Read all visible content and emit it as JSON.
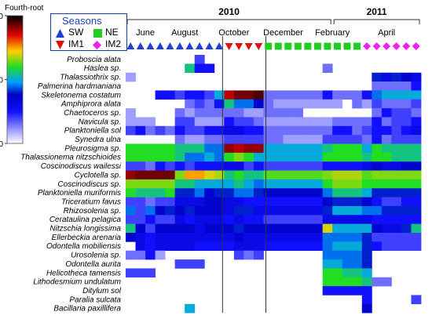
{
  "colorbar": {
    "title": "Fourth-root",
    "ticks": [
      "40",
      "20",
      "0"
    ]
  },
  "season_legend": {
    "title": "Seasons",
    "items": [
      {
        "code": "SW",
        "marker": "triangle-up",
        "color": "#1f3fd9"
      },
      {
        "code": "NE",
        "marker": "square",
        "color": "#22cc22"
      },
      {
        "code": "IM1",
        "marker": "triangle-down",
        "color": "#dd1111"
      },
      {
        "code": "IM2",
        "marker": "diamond",
        "color": "#ee22ee"
      }
    ]
  },
  "chart_data": {
    "type": "heatmap",
    "years": [
      {
        "label": "2010",
        "col_start": 0,
        "col_end": 20
      },
      {
        "label": "2011",
        "col_start": 21,
        "col_end": 29
      }
    ],
    "months": [
      "June",
      "August",
      "October",
      "December",
      "February",
      "April"
    ],
    "sample_seasons": [
      "SW",
      "SW",
      "SW",
      "SW",
      "SW",
      "SW",
      "SW",
      "SW",
      "SW",
      "SW",
      "IM1",
      "IM1",
      "IM1",
      "IM1",
      "NE",
      "NE",
      "NE",
      "NE",
      "NE",
      "NE",
      "NE",
      "NE",
      "NE",
      "NE",
      "IM2",
      "IM2",
      "IM2",
      "IM2",
      "IM2",
      "IM2"
    ],
    "species": [
      "Proboscia alata",
      "Haslea sp.",
      "Thalassiothrix sp.",
      "Palmerina hardmaniana",
      "Skeletonema costatum",
      "Amphiprora alata",
      "Chaetoceros sp.",
      "Navicula sp.",
      "Planktoniella sol",
      "Synedra ulna",
      "Pleurosigma sp.",
      "Thalassionema nitzschioides",
      "Coscinodiscus wailessi",
      "Cyclotella sp.",
      "Coscinodiscus sp.",
      "Planktoniella muriformis",
      "Triceratium favus",
      "Rhizosolenia sp.",
      "Cerataulina pelagica",
      "Nitzschia longissima",
      "Ellerbeckia arenaria",
      "Odontella mobiliensis",
      "Urosolenia sp.",
      "Odontella aurita",
      "Helicotheca tamensis",
      "Lithodesmium undulatum",
      "Ditylum sol",
      "Paralia sulcata",
      "Bacillaria paxillifera"
    ],
    "colorbar_range": [
      0,
      40
    ],
    "values": [
      [
        0,
        0,
        0,
        0,
        0,
        0,
        0,
        8,
        0,
        0,
        0,
        0,
        0,
        0,
        0,
        0,
        0,
        0,
        0,
        0,
        0,
        0,
        0,
        0,
        0,
        0,
        0,
        0,
        0,
        0
      ],
      [
        0,
        0,
        0,
        0,
        0,
        0,
        22,
        10,
        10,
        0,
        0,
        0,
        0,
        0,
        0,
        0,
        0,
        0,
        0,
        0,
        6,
        0,
        0,
        0,
        0,
        0,
        0,
        0,
        0,
        0
      ],
      [
        4,
        0,
        0,
        0,
        0,
        0,
        0,
        0,
        0,
        0,
        0,
        0,
        0,
        0,
        0,
        0,
        0,
        0,
        0,
        0,
        0,
        0,
        0,
        0,
        0,
        16,
        12,
        16,
        14,
        12
      ],
      [
        0,
        0,
        0,
        0,
        0,
        0,
        0,
        0,
        0,
        0,
        0,
        0,
        0,
        0,
        0,
        0,
        0,
        0,
        0,
        0,
        0,
        0,
        0,
        0,
        0,
        6,
        6,
        6,
        6,
        10
      ],
      [
        0,
        0,
        0,
        10,
        10,
        8,
        10,
        10,
        8,
        20,
        35,
        37,
        37,
        38,
        6,
        6,
        6,
        6,
        6,
        6,
        10,
        6,
        6,
        6,
        10,
        18,
        20,
        20,
        20,
        20
      ],
      [
        0,
        0,
        0,
        0,
        0,
        0,
        6,
        8,
        6,
        10,
        22,
        18,
        18,
        14,
        6,
        4,
        4,
        4,
        4,
        4,
        4,
        4,
        0,
        6,
        4,
        8,
        6,
        6,
        6,
        8
      ],
      [
        4,
        0,
        0,
        0,
        0,
        6,
        4,
        6,
        6,
        6,
        6,
        6,
        4,
        4,
        6,
        6,
        6,
        6,
        0,
        0,
        0,
        0,
        0,
        0,
        0,
        6,
        10,
        8,
        8,
        6
      ],
      [
        4,
        4,
        4,
        0,
        0,
        8,
        8,
        4,
        4,
        4,
        10,
        8,
        8,
        6,
        4,
        4,
        4,
        4,
        4,
        4,
        4,
        6,
        6,
        6,
        6,
        10,
        6,
        8,
        8,
        10
      ],
      [
        8,
        10,
        6,
        8,
        6,
        10,
        8,
        8,
        10,
        10,
        12,
        12,
        10,
        10,
        6,
        6,
        6,
        6,
        6,
        6,
        6,
        10,
        10,
        6,
        8,
        10,
        10,
        8,
        10,
        12
      ],
      [
        0,
        0,
        0,
        0,
        0,
        6,
        4,
        4,
        6,
        6,
        8,
        8,
        8,
        8,
        6,
        6,
        4,
        4,
        4,
        4,
        8,
        8,
        8,
        8,
        6,
        10,
        6,
        8,
        8,
        8
      ],
      [
        24,
        24,
        24,
        24,
        24,
        22,
        22,
        22,
        18,
        18,
        36,
        35,
        36,
        36,
        20,
        20,
        20,
        20,
        20,
        20,
        22,
        24,
        24,
        24,
        20,
        24,
        22,
        22,
        22,
        22
      ],
      [
        24,
        24,
        24,
        24,
        24,
        22,
        18,
        18,
        20,
        18,
        24,
        26,
        24,
        20,
        20,
        20,
        20,
        20,
        20,
        20,
        24,
        24,
        24,
        24,
        22,
        24,
        24,
        22,
        22,
        22
      ],
      [
        8,
        8,
        6,
        10,
        8,
        10,
        8,
        10,
        10,
        10,
        12,
        12,
        8,
        10,
        8,
        8,
        8,
        8,
        8,
        8,
        10,
        10,
        10,
        10,
        12,
        14,
        12,
        12,
        14,
        14
      ],
      [
        36,
        37,
        37,
        37,
        37,
        26,
        30,
        30,
        28,
        27,
        22,
        24,
        22,
        22,
        25,
        25,
        25,
        25,
        25,
        25,
        26,
        27,
        27,
        27,
        25,
        26,
        26,
        26,
        26,
        26
      ],
      [
        26,
        26,
        26,
        26,
        26,
        22,
        22,
        20,
        20,
        20,
        20,
        22,
        20,
        18,
        20,
        20,
        20,
        20,
        20,
        20,
        24,
        26,
        26,
        26,
        24,
        24,
        24,
        24,
        24,
        24
      ],
      [
        24,
        22,
        22,
        22,
        24,
        16,
        16,
        18,
        14,
        16,
        16,
        18,
        18,
        16,
        14,
        14,
        14,
        14,
        14,
        14,
        18,
        22,
        22,
        22,
        20,
        16,
        16,
        16,
        16,
        16
      ],
      [
        8,
        8,
        6,
        8,
        8,
        12,
        12,
        12,
        14,
        14,
        12,
        12,
        10,
        10,
        10,
        10,
        10,
        10,
        10,
        10,
        14,
        16,
        16,
        16,
        14,
        10,
        8,
        8,
        10,
        10
      ],
      [
        18,
        8,
        18,
        14,
        16,
        14,
        16,
        14,
        14,
        14,
        12,
        16,
        16,
        12,
        12,
        12,
        12,
        12,
        12,
        12,
        16,
        20,
        20,
        20,
        18,
        18,
        16,
        16,
        16,
        16
      ],
      [
        8,
        8,
        10,
        8,
        8,
        12,
        10,
        12,
        12,
        12,
        10,
        12,
        10,
        10,
        8,
        8,
        8,
        8,
        8,
        8,
        12,
        12,
        12,
        12,
        12,
        10,
        10,
        10,
        10,
        10
      ],
      [
        22,
        14,
        8,
        14,
        14,
        14,
        14,
        12,
        14,
        14,
        14,
        16,
        14,
        14,
        14,
        14,
        14,
        14,
        14,
        14,
        28,
        20,
        20,
        20,
        20,
        14,
        12,
        12,
        16,
        22
      ],
      [
        14,
        12,
        10,
        12,
        12,
        12,
        12,
        12,
        12,
        12,
        12,
        14,
        12,
        12,
        12,
        12,
        12,
        12,
        12,
        12,
        18,
        18,
        18,
        18,
        16,
        8,
        8,
        8,
        8,
        8
      ],
      [
        0,
        12,
        10,
        12,
        12,
        12,
        12,
        10,
        10,
        10,
        10,
        12,
        12,
        12,
        10,
        10,
        10,
        10,
        10,
        10,
        18,
        20,
        20,
        20,
        16,
        10,
        8,
        8,
        8,
        8
      ],
      [
        6,
        6,
        10,
        4,
        0,
        0,
        0,
        0,
        0,
        0,
        0,
        8,
        6,
        8,
        0,
        0,
        0,
        0,
        0,
        0,
        18,
        18,
        18,
        18,
        16,
        0,
        0,
        0,
        0,
        0
      ],
      [
        0,
        0,
        0,
        0,
        0,
        8,
        8,
        8,
        0,
        0,
        0,
        0,
        0,
        0,
        0,
        0,
        0,
        0,
        0,
        0,
        20,
        20,
        18,
        18,
        16,
        0,
        0,
        0,
        0,
        0
      ],
      [
        8,
        8,
        8,
        0,
        0,
        0,
        0,
        0,
        0,
        0,
        0,
        0,
        0,
        0,
        0,
        0,
        0,
        0,
        0,
        0,
        24,
        24,
        22,
        22,
        20,
        0,
        0,
        0,
        0,
        0
      ],
      [
        0,
        0,
        0,
        0,
        0,
        0,
        0,
        0,
        0,
        0,
        0,
        0,
        0,
        0,
        0,
        0,
        0,
        0,
        0,
        0,
        24,
        24,
        24,
        24,
        22,
        6,
        6,
        0,
        0,
        0
      ],
      [
        0,
        0,
        0,
        0,
        0,
        0,
        0,
        0,
        0,
        0,
        0,
        0,
        0,
        0,
        0,
        0,
        0,
        0,
        0,
        0,
        10,
        10,
        10,
        10,
        10,
        0,
        0,
        0,
        0,
        0
      ],
      [
        0,
        0,
        0,
        0,
        0,
        0,
        0,
        0,
        0,
        0,
        0,
        0,
        0,
        0,
        0,
        0,
        0,
        0,
        0,
        0,
        0,
        0,
        0,
        0,
        10,
        0,
        0,
        0,
        0,
        8
      ],
      [
        0,
        0,
        0,
        0,
        0,
        0,
        20,
        0,
        0,
        0,
        0,
        0,
        0,
        0,
        0,
        0,
        0,
        0,
        0,
        0,
        0,
        0,
        0,
        0,
        14,
        0,
        0,
        0,
        0,
        0
      ]
    ]
  }
}
